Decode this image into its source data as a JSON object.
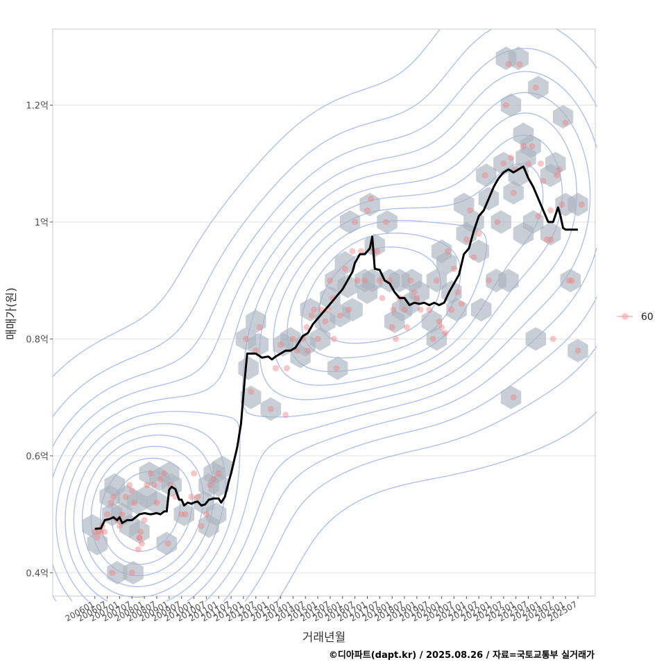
{
  "chart_data": {
    "type": "scatter",
    "xlabel": "거래년월",
    "ylabel": "매매가(원)",
    "x_ticks": [
      "200601",
      "200607",
      "200701",
      "200707",
      "200801",
      "200807",
      "200901",
      "200907",
      "201001",
      "201007",
      "201101",
      "201107",
      "201201",
      "201207",
      "201301",
      "201307",
      "201401",
      "201407",
      "201501",
      "201507",
      "201601",
      "201607",
      "201701",
      "201707",
      "201801",
      "201807",
      "201901",
      "201907",
      "202001",
      "202007",
      "202101",
      "202107",
      "202201",
      "202207",
      "202301",
      "202307",
      "202401",
      "202407",
      "202501",
      "202507"
    ],
    "y_ticks": [
      {
        "value": 0.4,
        "label": "0.4억"
      },
      {
        "value": 0.6,
        "label": "0.6억"
      },
      {
        "value": 0.8,
        "label": "0.8억"
      },
      {
        "value": 1.0,
        "label": "1억"
      },
      {
        "value": 1.2,
        "label": "1.2억"
      }
    ],
    "ylim": [
      0.36,
      1.33
    ],
    "xlim_index": [
      -3.4,
      40.4
    ],
    "grid": "horizontal major lines",
    "legend": {
      "position": "right",
      "entries": [
        {
          "label": "60",
          "color": "#f4a3a8"
        }
      ]
    },
    "colors": {
      "points": "#f08080",
      "hex": "#aab4be",
      "contour": "#aabcf0",
      "line": "#000000"
    },
    "points": [
      [
        0,
        0.47
      ],
      [
        0.2,
        0.46
      ],
      [
        0.3,
        0.47
      ],
      [
        0.5,
        0.47
      ],
      [
        0.6,
        0.48
      ],
      [
        1,
        0.5
      ],
      [
        1.3,
        0.52
      ],
      [
        1.5,
        0.53
      ],
      [
        1.8,
        0.49
      ],
      [
        2,
        0.48
      ],
      [
        2.2,
        0.5
      ],
      [
        2.5,
        0.53
      ],
      [
        2.8,
        0.55
      ],
      [
        3,
        0.54
      ],
      [
        3.2,
        0.52
      ],
      [
        3.5,
        0.44
      ],
      [
        3.6,
        0.46
      ],
      [
        3.8,
        0.45
      ],
      [
        3.7,
        0.47
      ],
      [
        4,
        0.49
      ],
      [
        4.2,
        0.55
      ],
      [
        4.5,
        0.57
      ],
      [
        4.8,
        0.55
      ],
      [
        5,
        0.52
      ],
      [
        5.3,
        0.56
      ],
      [
        5.6,
        0.57
      ],
      [
        5.9,
        0.45
      ],
      [
        6.1,
        0.55
      ],
      [
        6.5,
        0.53
      ],
      [
        7,
        0.5
      ],
      [
        7.3,
        0.5
      ],
      [
        7.8,
        0.53
      ],
      [
        8,
        0.57
      ],
      [
        8.3,
        0.53
      ],
      [
        8.6,
        0.48
      ],
      [
        9,
        0.5
      ],
      [
        9.3,
        0.55
      ],
      [
        9.6,
        0.56
      ],
      [
        10,
        0.57
      ],
      [
        1.4,
        0.4
      ],
      [
        3,
        0.4
      ],
      [
        3.6,
        0.46
      ],
      [
        0.8,
        0.47
      ],
      [
        12.2,
        0.8
      ],
      [
        12.6,
        0.71
      ],
      [
        13,
        0.78
      ],
      [
        13.3,
        0.82
      ],
      [
        14.2,
        0.68
      ],
      [
        14.6,
        0.75
      ],
      [
        15,
        0.79
      ],
      [
        15.4,
        0.67
      ],
      [
        15.5,
        0.75
      ],
      [
        16,
        0.8
      ],
      [
        16.3,
        0.78
      ],
      [
        16.8,
        0.8
      ],
      [
        17.1,
        0.82
      ],
      [
        17.2,
        0.78
      ],
      [
        17.5,
        0.84
      ],
      [
        17.7,
        0.85
      ],
      [
        18,
        0.8
      ],
      [
        18.3,
        0.85
      ],
      [
        18.6,
        0.83
      ],
      [
        18.8,
        0.85
      ],
      [
        19,
        0.9
      ],
      [
        19.2,
        0.87
      ],
      [
        19.3,
        0.8
      ],
      [
        19.5,
        0.75
      ],
      [
        19.8,
        0.84
      ],
      [
        20.2,
        0.92
      ],
      [
        20.5,
        0.85
      ],
      [
        20.8,
        0.95
      ],
      [
        21,
        1.0
      ],
      [
        21.2,
        0.9
      ],
      [
        21.5,
        0.95
      ],
      [
        21.8,
        0.9
      ],
      [
        22,
        1.02
      ],
      [
        22.3,
        1.04
      ],
      [
        22.5,
        0.95
      ],
      [
        22.8,
        0.95
      ],
      [
        23,
        0.9
      ],
      [
        23.2,
        0.87
      ],
      [
        23.5,
        1.0
      ],
      [
        23.8,
        0.9
      ],
      [
        24,
        0.82
      ],
      [
        24.1,
        0.85
      ],
      [
        24.3,
        0.8
      ],
      [
        24.6,
        0.87
      ],
      [
        25,
        0.85
      ],
      [
        25.2,
        0.82
      ],
      [
        25.5,
        0.9
      ],
      [
        25.8,
        0.88
      ],
      [
        26,
        0.87
      ],
      [
        26.3,
        0.85
      ],
      [
        27,
        0.85
      ],
      [
        27.3,
        0.8
      ],
      [
        27.6,
        0.9
      ],
      [
        27.8,
        0.83
      ],
      [
        28,
        0.82
      ],
      [
        28.3,
        0.81
      ],
      [
        28.5,
        0.95
      ],
      [
        28.8,
        0.85
      ],
      [
        29,
        0.92
      ],
      [
        29.3,
        0.88
      ],
      [
        29.6,
        0.86
      ],
      [
        30,
        0.97
      ],
      [
        30.3,
        1.02
      ],
      [
        30.6,
        0.94
      ],
      [
        31,
        0.98
      ],
      [
        31.5,
        1.08
      ],
      [
        31.8,
        0.9
      ],
      [
        32.5,
        1.0
      ],
      [
        33,
        1.1
      ],
      [
        33.2,
        1.2
      ],
      [
        33.4,
        1.27
      ],
      [
        33.6,
        1.11
      ],
      [
        33.8,
        1.05
      ],
      [
        34,
        1.09
      ],
      [
        34.3,
        1.27
      ],
      [
        34.6,
        1.13
      ],
      [
        35,
        1.1
      ],
      [
        35.3,
        1.13
      ],
      [
        35.6,
        1.23
      ],
      [
        35.8,
        1.01
      ],
      [
        36,
        1.1
      ],
      [
        36.2,
        1.07
      ],
      [
        36.5,
        0.97
      ],
      [
        36.8,
        0.97
      ],
      [
        37,
        0.8
      ],
      [
        37.5,
        1.09
      ],
      [
        37.7,
        1.03
      ],
      [
        38,
        1.17
      ],
      [
        38.3,
        0.9
      ],
      [
        38.5,
        0.9
      ],
      [
        39,
        0.78
      ],
      [
        39.3,
        1.03
      ],
      [
        33.8,
        0.7
      ],
      [
        37.3,
        1.08
      ],
      [
        36.8,
        1.02
      ]
    ],
    "hexbins": [
      [
        -0.2,
        0.48
      ],
      [
        0.2,
        0.45
      ],
      [
        1.2,
        0.53
      ],
      [
        1.6,
        0.55
      ],
      [
        1.4,
        0.5
      ],
      [
        2.2,
        0.5
      ],
      [
        2.6,
        0.53
      ],
      [
        2.8,
        0.48
      ],
      [
        3.6,
        0.47
      ],
      [
        3.4,
        0.52
      ],
      [
        4.2,
        0.53
      ],
      [
        4.4,
        0.57
      ],
      [
        5.2,
        0.56
      ],
      [
        5,
        0.52
      ],
      [
        6,
        0.57
      ],
      [
        6.2,
        0.55
      ],
      [
        5.8,
        0.45
      ],
      [
        7.2,
        0.5
      ],
      [
        8.8,
        0.52
      ],
      [
        9.2,
        0.55
      ],
      [
        9.6,
        0.57
      ],
      [
        10,
        0.55
      ],
      [
        10.3,
        0.58
      ],
      [
        9.8,
        0.5
      ],
      [
        9.2,
        0.48
      ],
      [
        1.8,
        0.4
      ],
      [
        3.1,
        0.4
      ],
      [
        12.2,
        0.8
      ],
      [
        12.4,
        0.75
      ],
      [
        12.6,
        0.7
      ],
      [
        13,
        0.83
      ],
      [
        13.2,
        0.79
      ],
      [
        14.2,
        0.68
      ],
      [
        15.2,
        0.79
      ],
      [
        15.8,
        0.8
      ],
      [
        16.6,
        0.77
      ],
      [
        17,
        0.79
      ],
      [
        17.4,
        0.85
      ],
      [
        18.2,
        0.8
      ],
      [
        18.6,
        0.83
      ],
      [
        19,
        0.87
      ],
      [
        19.4,
        0.9
      ],
      [
        19.8,
        0.84
      ],
      [
        20.2,
        0.93
      ],
      [
        20.4,
        0.89
      ],
      [
        19.6,
        0.75
      ],
      [
        20.8,
        0.85
      ],
      [
        20.6,
        1.0
      ],
      [
        22.2,
        1.03
      ],
      [
        22.6,
        0.96
      ],
      [
        22.4,
        0.9
      ],
      [
        21.8,
        0.9
      ],
      [
        22,
        0.88
      ],
      [
        23.6,
        1.0
      ],
      [
        23.8,
        0.9
      ],
      [
        24.6,
        0.9
      ],
      [
        24.2,
        0.83
      ],
      [
        24.8,
        0.85
      ],
      [
        25.6,
        0.9
      ],
      [
        25.4,
        0.86
      ],
      [
        26.2,
        0.88
      ],
      [
        27.6,
        0.9
      ],
      [
        28,
        0.95
      ],
      [
        27.2,
        0.83
      ],
      [
        27.6,
        0.8
      ],
      [
        28.4,
        0.93
      ],
      [
        28.8,
        0.88
      ],
      [
        29.2,
        0.85
      ],
      [
        29.8,
        1.03
      ],
      [
        30,
        0.98
      ],
      [
        30.6,
        1.0
      ],
      [
        31,
        0.95
      ],
      [
        31.2,
        0.85
      ],
      [
        31.6,
        1.08
      ],
      [
        31.8,
        1.04
      ],
      [
        32.4,
        0.9
      ],
      [
        32.8,
        1.0
      ],
      [
        33,
        1.1
      ],
      [
        33.4,
        0.9
      ],
      [
        33.2,
        1.28
      ],
      [
        34.2,
        1.28
      ],
      [
        33.6,
        1.2
      ],
      [
        33.8,
        1.05
      ],
      [
        34.2,
        1.08
      ],
      [
        34.6,
        1.15
      ],
      [
        34.8,
        1.11
      ],
      [
        35.2,
        1.13
      ],
      [
        35.4,
        1.0
      ],
      [
        34.6,
        0.98
      ],
      [
        35.8,
        1.23
      ],
      [
        36.8,
        1.08
      ],
      [
        37.2,
        1.1
      ],
      [
        36.8,
        0.98
      ],
      [
        37.8,
        1.18
      ],
      [
        38,
        1.03
      ],
      [
        38.4,
        0.9
      ],
      [
        39,
        1.03
      ],
      [
        39,
        0.78
      ],
      [
        35.6,
        0.8
      ],
      [
        33.6,
        0.7
      ]
    ],
    "median_line": [
      [
        0,
        0.475
      ],
      [
        0.5,
        0.476
      ],
      [
        0.8,
        0.49
      ],
      [
        1.2,
        0.492
      ],
      [
        1.5,
        0.495
      ],
      [
        1.8,
        0.49
      ],
      [
        2,
        0.495
      ],
      [
        2.2,
        0.485
      ],
      [
        2.6,
        0.49
      ],
      [
        3,
        0.49
      ],
      [
        3.3,
        0.495
      ],
      [
        3.6,
        0.5
      ],
      [
        4,
        0.502
      ],
      [
        4.5,
        0.5
      ],
      [
        5,
        0.502
      ],
      [
        5.3,
        0.5
      ],
      [
        5.6,
        0.505
      ],
      [
        5.8,
        0.505
      ],
      [
        6,
        0.542
      ],
      [
        6.2,
        0.547
      ],
      [
        6.5,
        0.543
      ],
      [
        6.8,
        0.525
      ],
      [
        7,
        0.525
      ],
      [
        7.2,
        0.515
      ],
      [
        7.5,
        0.52
      ],
      [
        7.8,
        0.518
      ],
      [
        8,
        0.52
      ],
      [
        8.3,
        0.522
      ],
      [
        8.6,
        0.515
      ],
      [
        8.9,
        0.517
      ],
      [
        9.2,
        0.525
      ],
      [
        9.6,
        0.527
      ],
      [
        10,
        0.527
      ],
      [
        10.2,
        0.52
      ],
      [
        10.5,
        0.53
      ],
      [
        10.8,
        0.555
      ],
      [
        11,
        0.57
      ],
      [
        11.5,
        0.615
      ],
      [
        11.8,
        0.655
      ],
      [
        12.1,
        0.73
      ],
      [
        12.3,
        0.775
      ],
      [
        12.6,
        0.775
      ],
      [
        13,
        0.775
      ],
      [
        13.5,
        0.768
      ],
      [
        14,
        0.77
      ],
      [
        14.3,
        0.765
      ],
      [
        14.6,
        0.77
      ],
      [
        15,
        0.775
      ],
      [
        15.4,
        0.78
      ],
      [
        15.8,
        0.78
      ],
      [
        16.2,
        0.785
      ],
      [
        16.5,
        0.795
      ],
      [
        16.8,
        0.805
      ],
      [
        17.2,
        0.81
      ],
      [
        17.6,
        0.825
      ],
      [
        18,
        0.835
      ],
      [
        18.4,
        0.845
      ],
      [
        18.8,
        0.855
      ],
      [
        19.2,
        0.865
      ],
      [
        19.6,
        0.875
      ],
      [
        20,
        0.885
      ],
      [
        20.4,
        0.9
      ],
      [
        20.8,
        0.915
      ],
      [
        21,
        0.93
      ],
      [
        21.4,
        0.945
      ],
      [
        21.8,
        0.945
      ],
      [
        22.2,
        0.955
      ],
      [
        22.4,
        0.975
      ],
      [
        22.6,
        0.92
      ],
      [
        23,
        0.918
      ],
      [
        23.4,
        0.9
      ],
      [
        23.8,
        0.895
      ],
      [
        24.2,
        0.88
      ],
      [
        24.6,
        0.87
      ],
      [
        25,
        0.87
      ],
      [
        25.4,
        0.858
      ],
      [
        25.8,
        0.862
      ],
      [
        26.2,
        0.86
      ],
      [
        26.6,
        0.862
      ],
      [
        27,
        0.858
      ],
      [
        27.4,
        0.862
      ],
      [
        27.8,
        0.858
      ],
      [
        28.2,
        0.862
      ],
      [
        28.6,
        0.88
      ],
      [
        29,
        0.895
      ],
      [
        29.4,
        0.91
      ],
      [
        29.8,
        0.945
      ],
      [
        30.2,
        0.955
      ],
      [
        30.6,
        0.985
      ],
      [
        31,
        1.01
      ],
      [
        31.4,
        1.02
      ],
      [
        31.8,
        1.04
      ],
      [
        32.2,
        1.06
      ],
      [
        32.6,
        1.075
      ],
      [
        33,
        1.085
      ],
      [
        33.4,
        1.09
      ],
      [
        33.8,
        1.085
      ],
      [
        34.2,
        1.09
      ],
      [
        34.6,
        1.095
      ],
      [
        35,
        1.075
      ],
      [
        35.4,
        1.06
      ],
      [
        35.8,
        1.04
      ],
      [
        36.2,
        1.02
      ],
      [
        36.6,
        1.0
      ],
      [
        37,
        1.0
      ],
      [
        37.4,
        1.025
      ],
      [
        37.6,
        1.01
      ],
      [
        37.8,
        0.99
      ],
      [
        38,
        0.987
      ],
      [
        38.5,
        0.987
      ],
      [
        39,
        0.987
      ]
    ]
  },
  "footer": {
    "credit": "©디아파트(dapt.kr) / 2025.08.26 / 자료=국토교통부 실거래가"
  }
}
